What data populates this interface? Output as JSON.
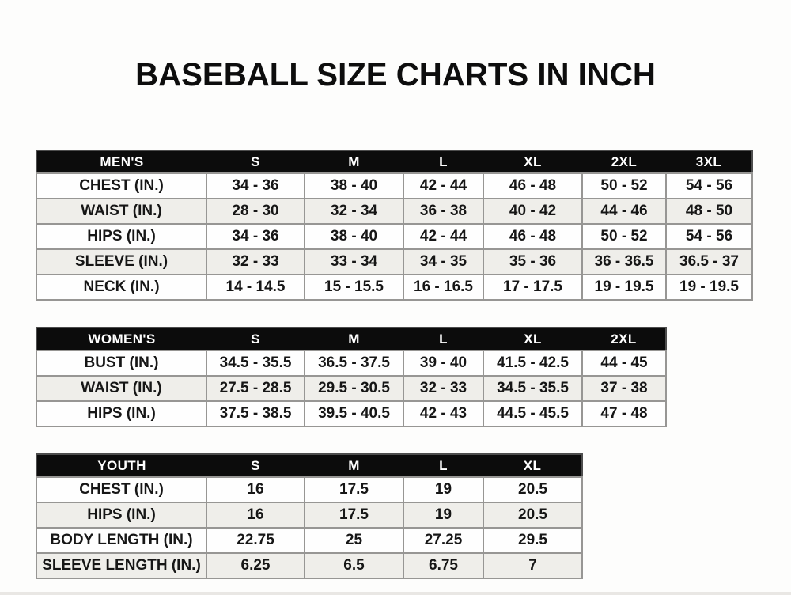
{
  "title": "BASEBALL SIZE CHARTS IN INCH",
  "colors": {
    "header_bg": "#0c0c0c",
    "header_text": "#ffffff",
    "row_alt_bg": "#efeeea",
    "cell_text": "#161616",
    "border": "#979694"
  },
  "tables": [
    {
      "name": "mens-size-chart",
      "header": [
        "MEN'S",
        "S",
        "M",
        "L",
        "XL",
        "2XL",
        "3XL"
      ],
      "rows": [
        [
          "CHEST (IN.)",
          "34 - 36",
          "38 - 40",
          "42 - 44",
          "46 - 48",
          "50 - 52",
          "54 - 56"
        ],
        [
          "WAIST (IN.)",
          "28 - 30",
          "32 - 34",
          "36 - 38",
          "40 - 42",
          "44 - 46",
          "48 - 50"
        ],
        [
          "HIPS (IN.)",
          "34 - 36",
          "38 - 40",
          "42 - 44",
          "46 - 48",
          "50 - 52",
          "54 - 56"
        ],
        [
          "SLEEVE (IN.)",
          "32 - 33",
          "33 - 34",
          "34 - 35",
          "35 - 36",
          "36 - 36.5",
          "36.5 - 37"
        ],
        [
          "NECK (IN.)",
          "14 - 14.5",
          "15 - 15.5",
          "16 - 16.5",
          "17 - 17.5",
          "19 - 19.5",
          "19 - 19.5"
        ]
      ]
    },
    {
      "name": "womens-size-chart",
      "header": [
        "WOMEN'S",
        "S",
        "M",
        "L",
        "XL",
        "2XL"
      ],
      "rows": [
        [
          "BUST (IN.)",
          "34.5 - 35.5",
          "36.5 - 37.5",
          "39 - 40",
          "41.5 - 42.5",
          "44 - 45"
        ],
        [
          "WAIST (IN.)",
          "27.5 - 28.5",
          "29.5 - 30.5",
          "32 - 33",
          "34.5 - 35.5",
          "37 - 38"
        ],
        [
          "HIPS (IN.)",
          "37.5 - 38.5",
          "39.5 - 40.5",
          "42 - 43",
          "44.5 - 45.5",
          "47 - 48"
        ]
      ]
    },
    {
      "name": "youth-size-chart",
      "header": [
        "YOUTH",
        "S",
        "M",
        "L",
        "XL"
      ],
      "rows": [
        [
          "CHEST (IN.)",
          "16",
          "17.5",
          "19",
          "20.5"
        ],
        [
          "HIPS (IN.)",
          "16",
          "17.5",
          "19",
          "20.5"
        ],
        [
          "BODY LENGTH (IN.)",
          "22.75",
          "25",
          "27.25",
          "29.5"
        ],
        [
          "SLEEVE LENGTH (IN.)",
          "6.25",
          "6.5",
          "6.75",
          "7"
        ]
      ]
    }
  ]
}
